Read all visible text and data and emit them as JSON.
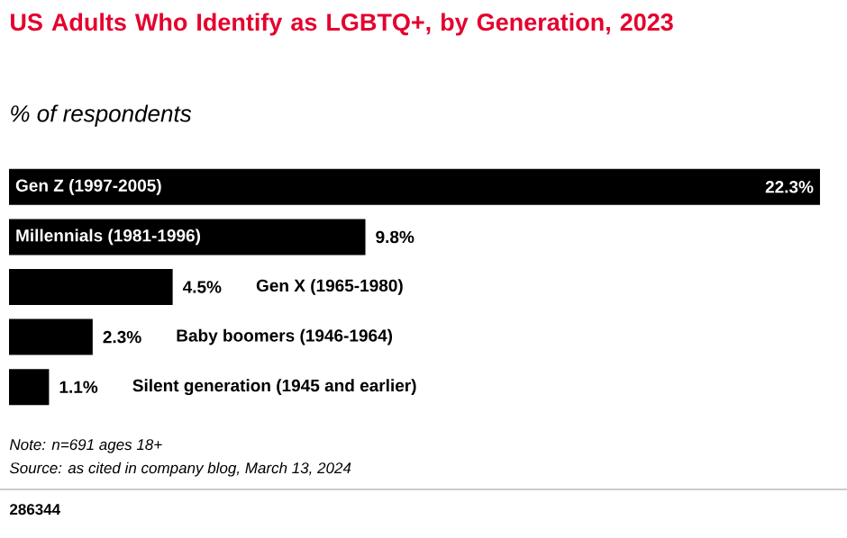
{
  "chart_data": {
    "type": "bar",
    "orientation": "horizontal",
    "title": "US Adults Who Identify as LGBTQ+, by Generation, 2023",
    "subtitle": "% of respondents",
    "categories": [
      "Gen Z (1997-2005)",
      "Millennials (1981-1996)",
      "Gen X (1965-1980)",
      "Baby boomers (1946-1964)",
      "Silent generation (1945 and earlier)"
    ],
    "values": [
      22.3,
      9.8,
      4.5,
      2.3,
      1.1
    ],
    "value_labels": [
      "22.3%",
      "9.8%",
      "4.5%",
      "2.3%",
      "1.1%"
    ],
    "color": "#000000",
    "annotations": [
      "Note: n=691 ages 18+",
      "Source: as cited in company blog, March 13, 2024",
      "286344"
    ]
  }
}
